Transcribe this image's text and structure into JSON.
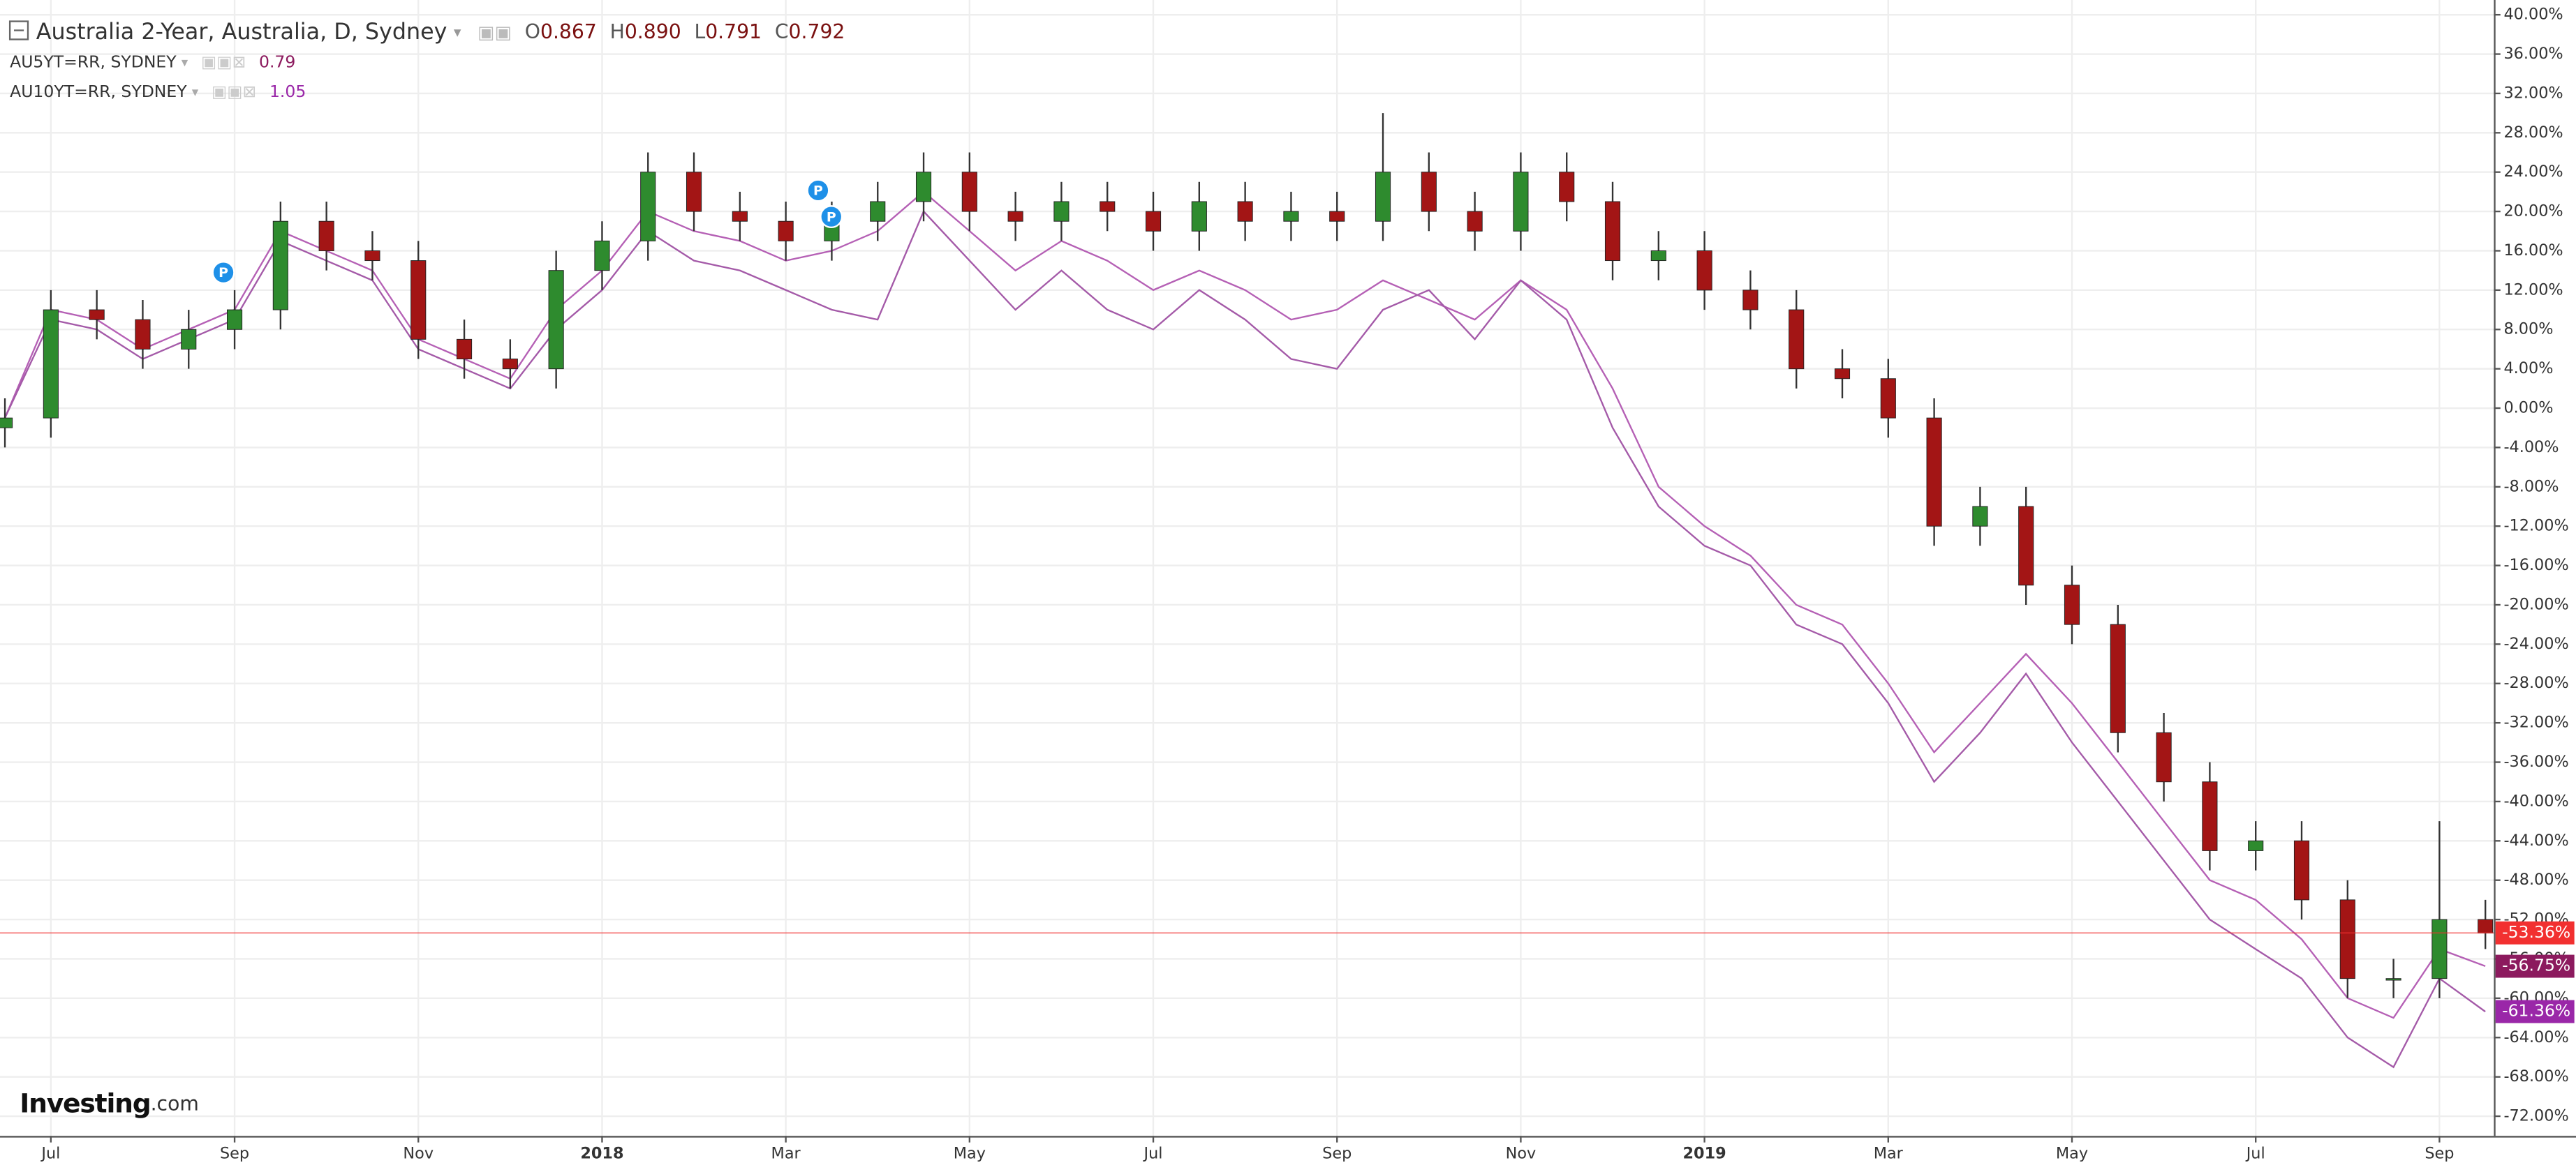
{
  "chart_data": {
    "type": "candlestick",
    "title": "Australia 2-Year, Australia, D, Sydney",
    "ohlc_labels": [
      {
        "label": "O",
        "value": "0.867"
      },
      {
        "label": "H",
        "value": "0.890"
      },
      {
        "label": "L",
        "value": "0.791"
      },
      {
        "label": "C",
        "value": "0.792"
      }
    ],
    "categories": [
      null,
      "Jul",
      null,
      null,
      null,
      "Sep",
      null,
      null,
      null,
      "Nov",
      null,
      null,
      null,
      "2018",
      null,
      null,
      null,
      "Mar",
      null,
      null,
      null,
      "May",
      null,
      null,
      null,
      "Jul",
      null,
      null,
      null,
      "Sep",
      null,
      null,
      null,
      "Nov",
      null,
      null,
      null,
      "2019",
      null,
      null,
      null,
      "Mar",
      null,
      null,
      null,
      "May",
      null,
      null,
      null,
      "Jul",
      null,
      null,
      null,
      "Sep",
      null
    ],
    "open": [
      -2,
      -1,
      10,
      9,
      6,
      8,
      10,
      19,
      16,
      15,
      7,
      5,
      4,
      14,
      17,
      24,
      20,
      19,
      17,
      19,
      21,
      24,
      20,
      19,
      21,
      20,
      18,
      21,
      19,
      20,
      19,
      24,
      20,
      18,
      24,
      21,
      15,
      16,
      12,
      10,
      4,
      3,
      -1,
      -12,
      -10,
      -18,
      -22,
      -33,
      -38,
      -45,
      -44,
      -50,
      -58,
      -58,
      -52
    ],
    "high": [
      1,
      12,
      12,
      11,
      10,
      12,
      21,
      21,
      18,
      17,
      9,
      7,
      16,
      19,
      26,
      26,
      22,
      21,
      21,
      23,
      26,
      26,
      22,
      23,
      23,
      22,
      23,
      23,
      22,
      22,
      30,
      26,
      22,
      26,
      26,
      23,
      18,
      18,
      14,
      12,
      6,
      5,
      1,
      -8,
      -8,
      -16,
      -20,
      -31,
      -36,
      -42,
      -42,
      -48,
      -56,
      -42,
      -50
    ],
    "low": [
      -4,
      -3,
      7,
      4,
      4,
      6,
      8,
      14,
      13,
      5,
      3,
      2,
      2,
      12,
      15,
      18,
      17,
      15,
      15,
      17,
      19,
      18,
      17,
      17,
      18,
      16,
      16,
      17,
      17,
      17,
      17,
      18,
      16,
      16,
      19,
      13,
      13,
      10,
      8,
      2,
      1,
      -3,
      -14,
      -14,
      -20,
      -24,
      -35,
      -40,
      -47,
      -47,
      -52,
      -60,
      -60,
      -60,
      -55
    ],
    "close": [
      -1,
      10,
      9,
      6,
      8,
      10,
      19,
      16,
      15,
      7,
      5,
      4,
      14,
      17,
      24,
      20,
      19,
      17,
      19,
      21,
      24,
      20,
      19,
      21,
      20,
      18,
      21,
      19,
      20,
      19,
      24,
      20,
      18,
      24,
      21,
      15,
      16,
      12,
      10,
      4,
      3,
      -1,
      -12,
      -10,
      -18,
      -22,
      -33,
      -38,
      -45,
      -44,
      -50,
      -58,
      -58,
      -52,
      -53.36
    ],
    "close_labels": [
      null,
      null,
      null,
      null,
      null,
      null,
      null,
      null,
      null,
      null,
      null,
      null,
      null,
      null,
      null,
      null,
      null,
      null,
      null,
      null,
      null,
      null,
      null,
      null,
      null,
      null,
      null,
      null,
      null,
      null,
      null,
      null,
      null,
      null,
      null,
      null,
      null,
      null,
      null,
      null,
      null,
      null,
      null,
      null,
      null,
      null,
      null,
      null,
      null,
      null,
      null,
      null,
      null,
      null,
      "-53.36%"
    ],
    "up_color": "#2e8b2e",
    "down_color": "#a31515",
    "last_color": "#f23030",
    "series": [
      {
        "name": "AU5YT=RR, SYDNEY",
        "header_value": "0.79",
        "color": "#b560b5",
        "label_color": "#8c1a5e",
        "values": [
          -1,
          10,
          9,
          6,
          8,
          10,
          18,
          16,
          14,
          7,
          5,
          3,
          10,
          14,
          20,
          18,
          17,
          15,
          16,
          18,
          22,
          18,
          14,
          17,
          15,
          12,
          14,
          12,
          9,
          10,
          13,
          11,
          9,
          13,
          10,
          2,
          -8,
          -12,
          -15,
          -20,
          -22,
          -28,
          -35,
          -30,
          -25,
          -30,
          -36,
          -42,
          -48,
          -50,
          -54,
          -60,
          -62,
          -55,
          -56.75
        ],
        "value_labels": [
          null,
          null,
          null,
          null,
          null,
          null,
          null,
          null,
          null,
          null,
          null,
          null,
          null,
          null,
          null,
          null,
          null,
          null,
          null,
          null,
          null,
          null,
          null,
          null,
          null,
          null,
          null,
          null,
          null,
          null,
          null,
          null,
          null,
          null,
          null,
          null,
          null,
          null,
          null,
          null,
          null,
          null,
          null,
          null,
          null,
          null,
          null,
          null,
          null,
          null,
          null,
          null,
          null,
          null,
          "-56.75%"
        ]
      },
      {
        "name": "AU10YT=RR, SYDNEY",
        "header_value": "1.05",
        "color": "#a45aa8",
        "label_color": "#9a27a8",
        "values": [
          -1,
          9,
          8,
          5,
          7,
          9,
          17,
          15,
          13,
          6,
          4,
          2,
          8,
          12,
          18,
          15,
          14,
          12,
          10,
          9,
          20,
          15,
          10,
          14,
          10,
          8,
          12,
          9,
          5,
          4,
          10,
          12,
          7,
          13,
          9,
          -2,
          -10,
          -14,
          -16,
          -22,
          -24,
          -30,
          -38,
          -33,
          -27,
          -34,
          -40,
          -46,
          -52,
          -55,
          -58,
          -64,
          -67,
          -58,
          -61.36
        ],
        "value_labels": [
          null,
          null,
          null,
          null,
          null,
          null,
          null,
          null,
          null,
          null,
          null,
          null,
          null,
          null,
          null,
          null,
          null,
          null,
          null,
          null,
          null,
          null,
          null,
          null,
          null,
          null,
          null,
          null,
          null,
          null,
          null,
          null,
          null,
          null,
          null,
          null,
          null,
          null,
          null,
          null,
          null,
          null,
          null,
          null,
          null,
          null,
          null,
          null,
          null,
          null,
          null,
          null,
          null,
          null,
          "-61.36%"
        ]
      }
    ],
    "ylim": [
      -74,
      41.5
    ],
    "yticks": [
      {
        "value": 40,
        "label": "40.00%"
      },
      {
        "value": 36,
        "label": "36.00%"
      },
      {
        "value": 32,
        "label": "32.00%"
      },
      {
        "value": 28,
        "label": "28.00%"
      },
      {
        "value": 24,
        "label": "24.00%"
      },
      {
        "value": 20,
        "label": "20.00%"
      },
      {
        "value": 16,
        "label": "16.00%"
      },
      {
        "value": 12,
        "label": "12.00%"
      },
      {
        "value": 8,
        "label": "8.00%"
      },
      {
        "value": 4,
        "label": "4.00%"
      },
      {
        "value": 0,
        "label": "0.00%"
      },
      {
        "value": -4,
        "label": "-4.00%"
      },
      {
        "value": -8,
        "label": "-8.00%"
      },
      {
        "value": -12,
        "label": "-12.00%"
      },
      {
        "value": -16,
        "label": "-16.00%"
      },
      {
        "value": -20,
        "label": "-20.00%"
      },
      {
        "value": -24,
        "label": "-24.00%"
      },
      {
        "value": -28,
        "label": "-28.00%"
      },
      {
        "value": -32,
        "label": "-32.00%"
      },
      {
        "value": -36,
        "label": "-36.00%"
      },
      {
        "value": -40,
        "label": "-40.00%"
      },
      {
        "value": -44,
        "label": "-44.00%"
      },
      {
        "value": -48,
        "label": "-48.00%"
      },
      {
        "value": -52,
        "label": "-52.00%"
      },
      {
        "value": -56,
        "label": "-56.00%"
      },
      {
        "value": -60,
        "label": "-60.00%"
      },
      {
        "value": -64,
        "label": "-64.00%"
      },
      {
        "value": -68,
        "label": "-68.00%"
      },
      {
        "value": -72,
        "label": "-72.00%"
      }
    ],
    "grid": true,
    "annotations": [
      "P",
      "P",
      "P"
    ],
    "watermark": "Investing",
    "watermark_suffix": ".com"
  }
}
